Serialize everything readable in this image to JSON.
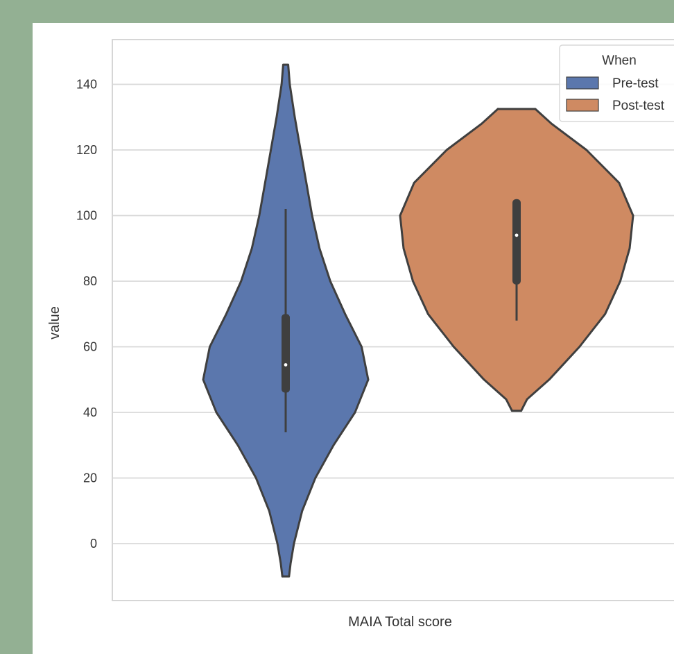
{
  "chart_data": {
    "type": "violin",
    "title": "",
    "xlabel": "MAIA Total score",
    "ylabel": "value",
    "ylim": [
      -14,
      157
    ],
    "yticks": [
      0,
      20,
      40,
      60,
      80,
      100,
      120,
      140
    ],
    "grid": "horizontal",
    "legend": {
      "title": "When",
      "placement": "top-right"
    },
    "categories": [
      "MAIA Total score"
    ],
    "series": [
      {
        "name": "Pre-test",
        "color": "#5b77ad",
        "min": -10,
        "max": 146,
        "q1": 46,
        "median": 54.5,
        "q3": 70,
        "whisker_low": 34,
        "whisker_high": 102,
        "density": [
          [
            -10,
            0.04
          ],
          [
            -6,
            0.06
          ],
          [
            0,
            0.1
          ],
          [
            10,
            0.2
          ],
          [
            20,
            0.36
          ],
          [
            30,
            0.58
          ],
          [
            40,
            0.84
          ],
          [
            50,
            1.0
          ],
          [
            60,
            0.92
          ],
          [
            70,
            0.72
          ],
          [
            80,
            0.54
          ],
          [
            90,
            0.41
          ],
          [
            100,
            0.32
          ],
          [
            110,
            0.25
          ],
          [
            120,
            0.18
          ],
          [
            130,
            0.11
          ],
          [
            140,
            0.05
          ],
          [
            146,
            0.03
          ]
        ]
      },
      {
        "name": "Post-test",
        "color": "#cf8a62",
        "min": 40.5,
        "max": 132.5,
        "q1": 79,
        "median": 94,
        "q3": 105,
        "whisker_low": 68,
        "whisker_high": 105,
        "density": [
          [
            40.5,
            0.04
          ],
          [
            44,
            0.09
          ],
          [
            50,
            0.28
          ],
          [
            60,
            0.54
          ],
          [
            70,
            0.76
          ],
          [
            80,
            0.89
          ],
          [
            90,
            0.97
          ],
          [
            100,
            1.0
          ],
          [
            110,
            0.88
          ],
          [
            120,
            0.6
          ],
          [
            128,
            0.3
          ],
          [
            132.5,
            0.16
          ]
        ]
      }
    ]
  }
}
